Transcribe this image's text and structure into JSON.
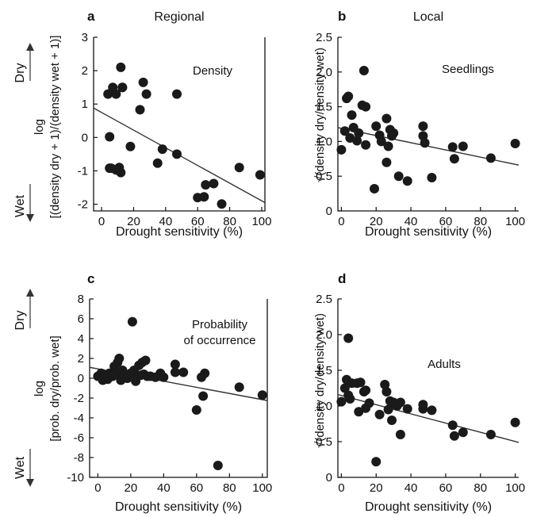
{
  "side_labels": {
    "dry": "Dry",
    "wet": "Wet"
  },
  "chart_data": [
    {
      "id": "a",
      "type": "scatter",
      "letter": "a",
      "title": "Regional",
      "annotation": "Density",
      "xlabel": "Drought sensitivity (%)",
      "ylabel_lines": [
        "log",
        "[(density dry + 1)/(density wet + 1)]"
      ],
      "xlim": [
        -5,
        102
      ],
      "ylim": [
        -2.2,
        3
      ],
      "xticks": [
        0,
        20,
        40,
        60,
        80,
        100
      ],
      "yticks": [
        -2,
        -1,
        0,
        1,
        2,
        3
      ],
      "fit": [
        [
          -5,
          0.88
        ],
        [
          102,
          -1.95
        ]
      ],
      "x": [
        4,
        5,
        7,
        9,
        12,
        13,
        28,
        26,
        24,
        47,
        13,
        18,
        5,
        6,
        9,
        11,
        12,
        35,
        38,
        47,
        60,
        64,
        65,
        70,
        75,
        86,
        99
      ],
      "y": [
        1.3,
        0.02,
        1.5,
        1.3,
        2.1,
        1.5,
        1.3,
        1.65,
        0.83,
        1.3,
        1.5,
        -0.27,
        -0.92,
        -0.92,
        -0.97,
        -0.9,
        -1.05,
        -0.77,
        -0.35,
        -0.5,
        -1.8,
        -1.78,
        -1.42,
        -1.38,
        -1.99,
        -0.9,
        -1.12
      ],
      "frame": "rightbottom"
    },
    {
      "id": "b",
      "type": "scatter",
      "letter": "b",
      "title": "Local",
      "annotation": "Seedlings",
      "xlabel": "Drought sensitivity (%)",
      "ylabel_lines": [
        "√(density dry/density wet)"
      ],
      "xlim": [
        -2,
        102
      ],
      "ylim": [
        0,
        2.5
      ],
      "xticks": [
        0,
        20,
        40,
        60,
        80,
        100
      ],
      "yticks": [
        0,
        0.5,
        1.0,
        1.5,
        2.0,
        2.5
      ],
      "ytick_labels": [
        "0",
        "0.5",
        "1.0",
        "1.5",
        "2.0",
        "2.5"
      ],
      "fit": [
        [
          -2,
          1.2
        ],
        [
          102,
          0.66
        ]
      ],
      "x": [
        0,
        2,
        3,
        4,
        6,
        7,
        9,
        12,
        13,
        14,
        14,
        19,
        20,
        22,
        23,
        26,
        26,
        27,
        28,
        29,
        30,
        33,
        38,
        47,
        47,
        48,
        52,
        64,
        65,
        70,
        86,
        100,
        5,
        10
      ],
      "y": [
        0.88,
        1.15,
        1.62,
        1.65,
        1.38,
        1.2,
        1.01,
        1.52,
        2.02,
        1.5,
        0.95,
        0.32,
        1.22,
        1.09,
        1.0,
        0.7,
        1.33,
        0.93,
        1.17,
        1.08,
        1.12,
        0.5,
        0.43,
        1.22,
        1.08,
        0.98,
        0.48,
        0.92,
        0.75,
        0.93,
        0.76,
        0.97,
        1.05,
        1.12
      ],
      "frame": "leftbottom"
    },
    {
      "id": "c",
      "type": "scatter",
      "letter": "c",
      "title": "",
      "annotation_lines": [
        "Probability",
        "of occurrence"
      ],
      "xlabel": "Drought sensitivity (%)",
      "ylabel_lines": [
        "log",
        "[prob. dry/prob. wet]"
      ],
      "xlim": [
        -5,
        103
      ],
      "ylim": [
        -10,
        8
      ],
      "xticks": [
        0,
        20,
        40,
        60,
        80,
        100
      ],
      "yticks": [
        -10,
        -8,
        -6,
        -4,
        -2,
        0,
        2,
        4,
        6,
        8
      ],
      "fit": [
        [
          -5,
          1.1
        ],
        [
          103,
          -2.25
        ]
      ],
      "x": [
        0,
        2,
        3,
        4,
        5,
        6,
        7,
        8,
        9,
        10,
        11,
        12,
        13,
        14,
        15,
        16,
        17,
        18,
        20,
        21,
        22,
        23,
        24,
        25,
        26,
        27,
        28,
        29,
        30,
        32,
        35,
        38,
        40,
        47,
        47,
        52,
        60,
        63,
        64,
        65,
        73,
        86,
        100
      ],
      "y": [
        0.2,
        0.5,
        -0.2,
        0.2,
        0.0,
        -0.1,
        0.5,
        0.3,
        0.2,
        1.2,
        0.4,
        1.6,
        2.0,
        -0.2,
        0.8,
        0.3,
        0.1,
        0.0,
        0.5,
        5.7,
        0.8,
        -0.3,
        0.2,
        1.3,
        0.3,
        1.6,
        0.4,
        1.8,
        0.2,
        0.2,
        0.1,
        0.5,
        0.1,
        1.4,
        0.6,
        0.6,
        -3.2,
        0.1,
        -1.8,
        0.5,
        -8.8,
        -0.9,
        -1.7
      ],
      "frame": "rightbottom"
    },
    {
      "id": "d",
      "type": "scatter",
      "letter": "d",
      "title": "",
      "annotation": "Adults",
      "xlabel": "Drought sensitivity (%)",
      "ylabel_lines": [
        "√(density dry/density wet)"
      ],
      "xlim": [
        -2,
        102
      ],
      "ylim": [
        0,
        2.5
      ],
      "xticks": [
        0,
        20,
        40,
        60,
        80,
        100
      ],
      "yticks": [
        0,
        0.5,
        1.0,
        1.5,
        2.0,
        2.5
      ],
      "ytick_labels": [
        "0",
        "0.5",
        "1.0",
        "1.5",
        "2.0",
        "2.5"
      ],
      "fit": [
        [
          -2,
          1.16
        ],
        [
          102,
          0.49
        ]
      ],
      "x": [
        0,
        2,
        3,
        4,
        4,
        5,
        6,
        9,
        10,
        11,
        13,
        14,
        14,
        16,
        20,
        22,
        25,
        26,
        27,
        28,
        29,
        30,
        32,
        34,
        34,
        38,
        47,
        47,
        52,
        64,
        65,
        70,
        86,
        100
      ],
      "y": [
        1.06,
        1.25,
        1.37,
        1.95,
        1.15,
        1.1,
        1.32,
        1.32,
        0.92,
        1.33,
        1.2,
        0.97,
        1.22,
        1.04,
        0.22,
        0.88,
        1.3,
        1.2,
        0.95,
        1.07,
        0.8,
        1.05,
        1.0,
        0.6,
        1.05,
        0.96,
        1.02,
        0.96,
        0.94,
        0.73,
        0.58,
        0.63,
        0.6,
        0.77
      ],
      "frame": "leftbottom"
    }
  ]
}
